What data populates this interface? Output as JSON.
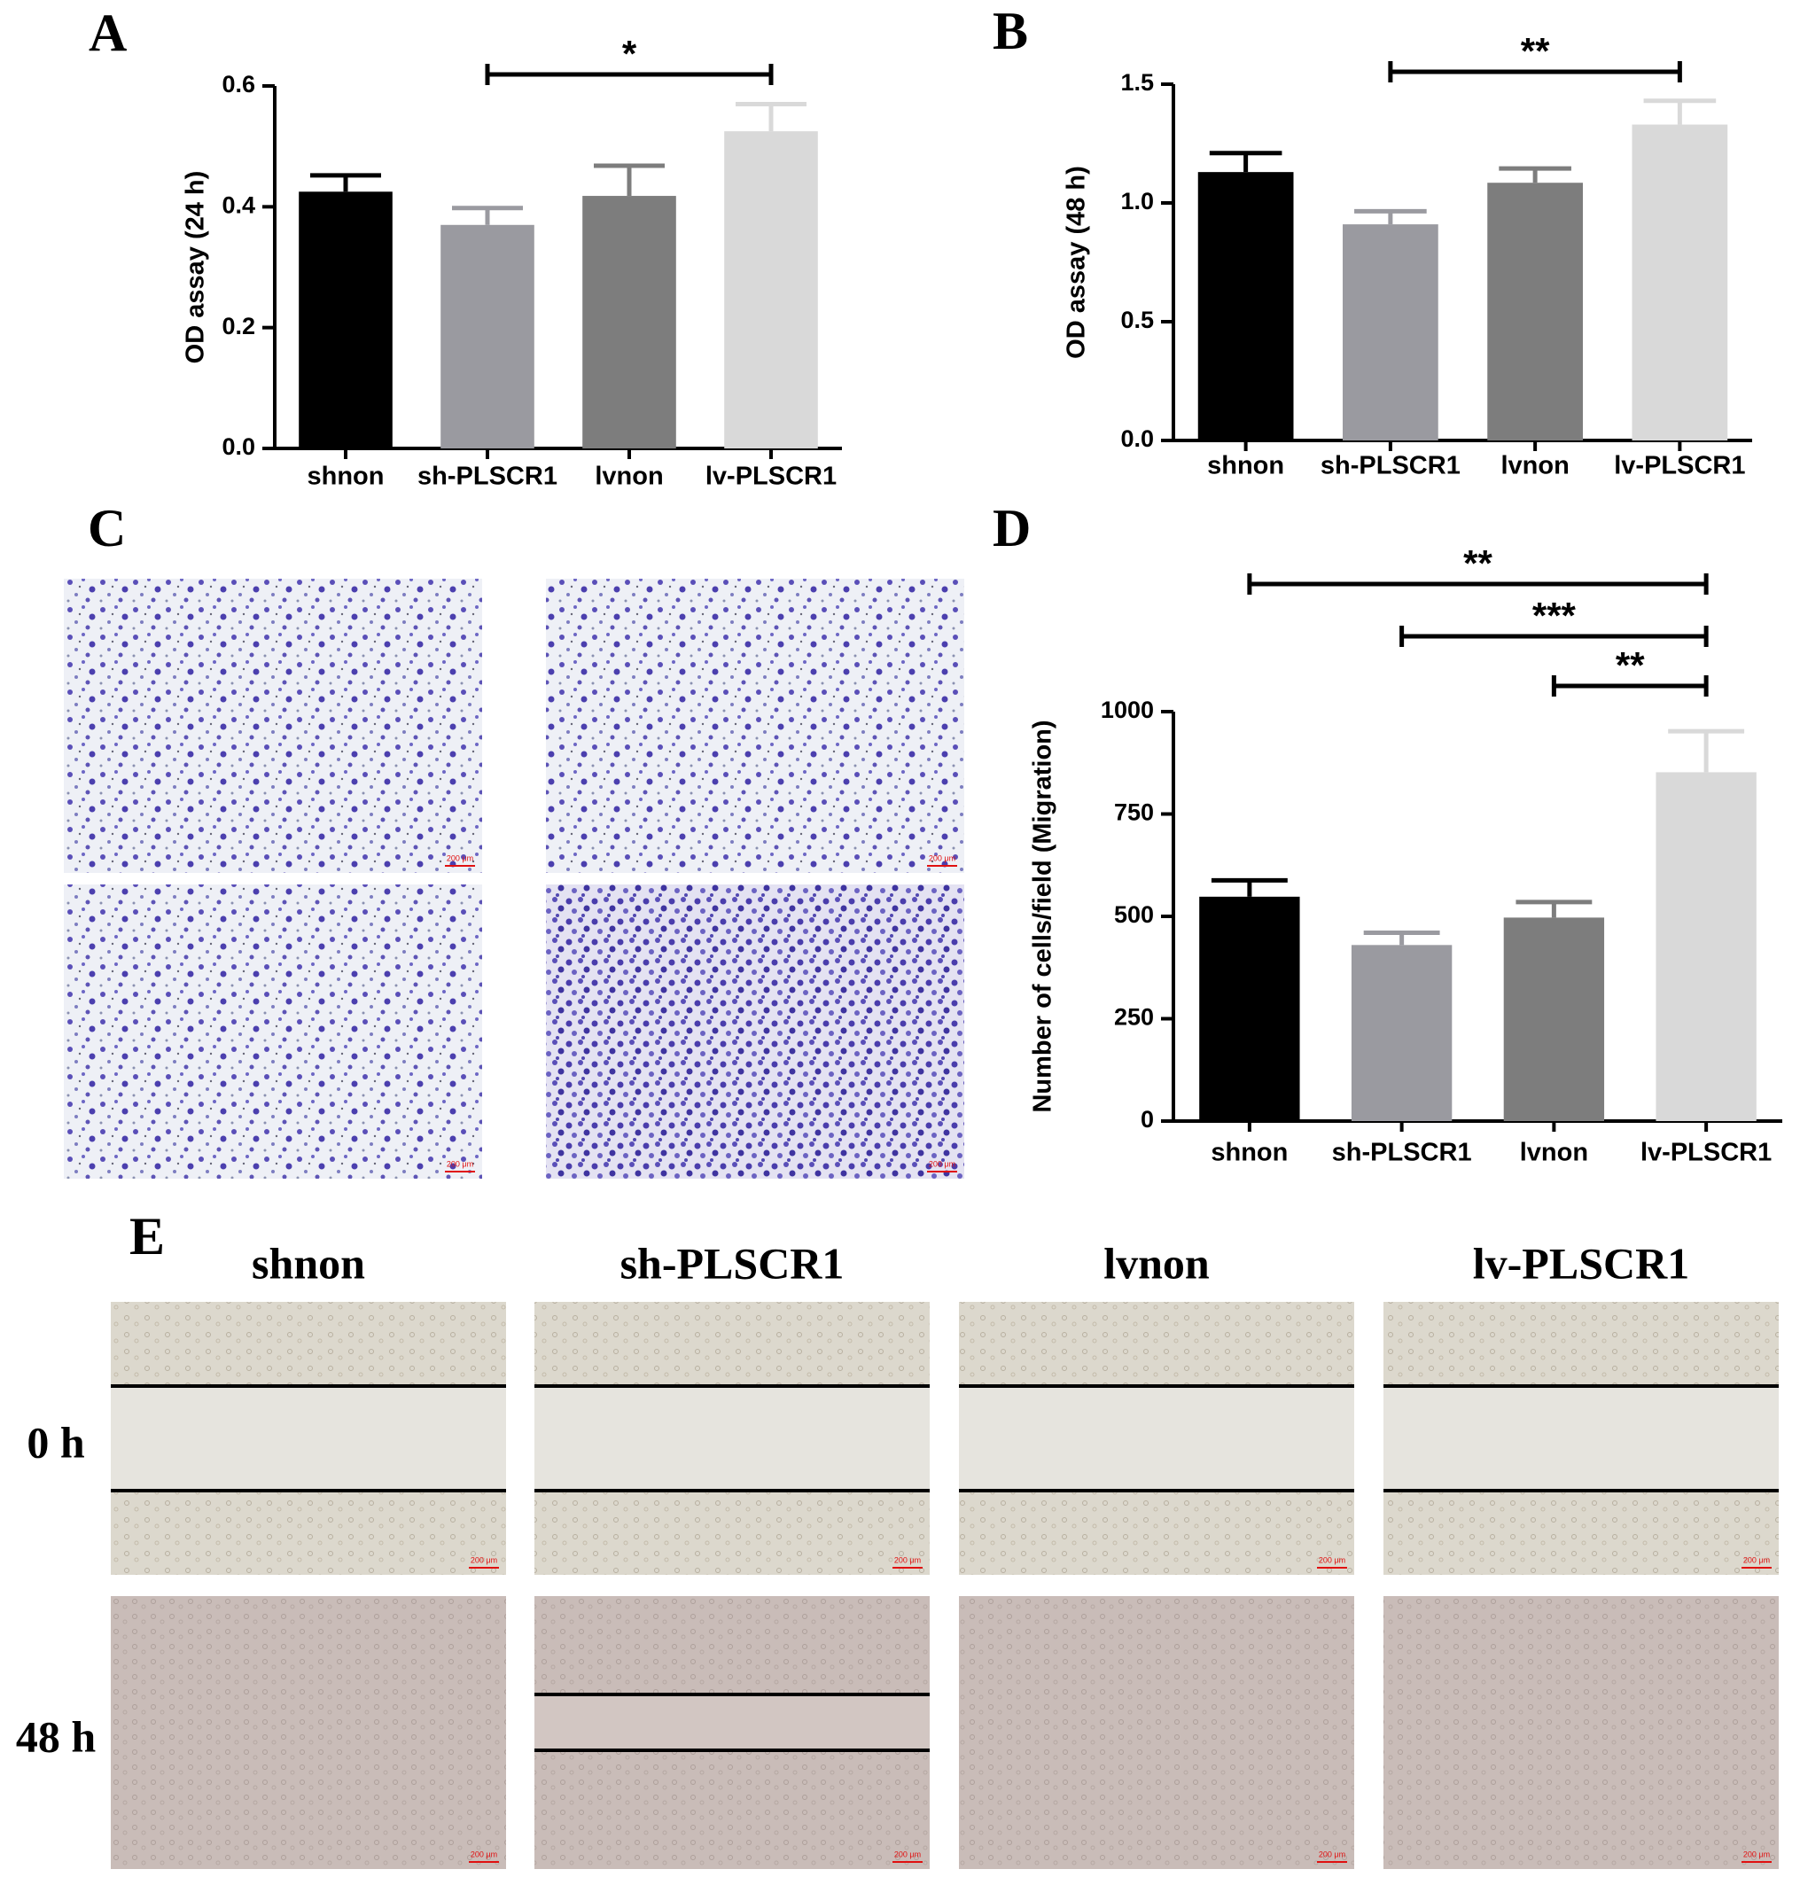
{
  "chart_data": [
    {
      "type": "bar",
      "label": "A",
      "ylabel": "OD assay (24 h)",
      "categories": [
        "shnon",
        "sh-PLSCR1",
        "lvnon",
        "lv-PLSCR1"
      ],
      "values": [
        0.425,
        0.37,
        0.418,
        0.525
      ],
      "errors": [
        0.027,
        0.028,
        0.05,
        0.045
      ],
      "colors": [
        "#000000",
        "#9a9aa0",
        "#7d7d7d",
        "#d9d9d9"
      ],
      "ylim": [
        0,
        0.6
      ],
      "yticks": [
        {
          "value": 0,
          "label": "0.0"
        },
        0.2,
        0.4,
        0.6
      ],
      "comparisons": [
        {
          "label": "*",
          "between": [
            1,
            3
          ]
        }
      ]
    },
    {
      "type": "bar",
      "label": "B",
      "ylabel": "OD assay (48 h)",
      "categories": [
        "shnon",
        "sh-PLSCR1",
        "lvnon",
        "lv-PLSCR1"
      ],
      "values": [
        1.13,
        0.91,
        1.085,
        1.33
      ],
      "errors": [
        0.08,
        0.055,
        0.06,
        0.1
      ],
      "colors": [
        "#000000",
        "#9a9aa0",
        "#7d7d7d",
        "#d9d9d9"
      ],
      "ylim": [
        0,
        1.5
      ],
      "yticks": [
        {
          "value": 0,
          "label": "0.0"
        },
        0.5,
        {
          "value": 1,
          "label": "1.0"
        },
        1.5
      ],
      "comparisons": [
        {
          "label": "**",
          "between": [
            1,
            3
          ]
        }
      ]
    },
    {
      "type": "bar",
      "label": "D",
      "ylabel": "Number of cells/field (Migration)",
      "categories": [
        "shnon",
        "sh-PLSCR1",
        "lvnon",
        "lv-PLSCR1"
      ],
      "values": [
        548,
        430,
        497,
        852
      ],
      "errors": [
        40,
        30,
        38,
        100
      ],
      "colors": [
        "#000000",
        "#9a9aa0",
        "#7d7d7d",
        "#d9d9d9"
      ],
      "ylim": [
        0,
        1000
      ],
      "yticks": [
        0,
        250,
        500,
        750,
        1000
      ],
      "comparisons": [
        {
          "label": "**",
          "between": [
            0,
            3
          ]
        },
        {
          "label": "***",
          "between": [
            1,
            3
          ]
        },
        {
          "label": "**",
          "between": [
            2,
            3
          ]
        }
      ]
    }
  ],
  "panel_c": {
    "label": "C"
  },
  "panel_e": {
    "label": "E",
    "columns": [
      "shnon",
      "sh-PLSCR1",
      "lvnon",
      "lv-PLSCR1"
    ],
    "rows": [
      "0 h",
      "48 h"
    ]
  },
  "scale_bar_label": "200 μm"
}
